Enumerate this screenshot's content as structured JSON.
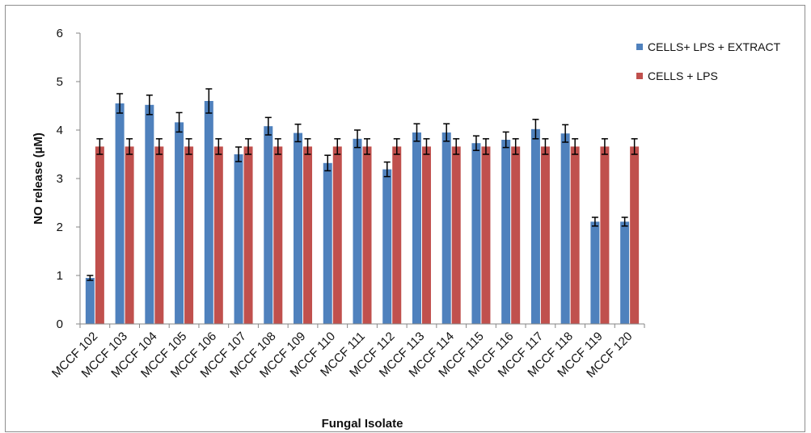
{
  "chart_data": {
    "type": "bar",
    "title": "",
    "xlabel": "Fungal Isolate",
    "ylabel": "NO release (µM)",
    "ylim": [
      0,
      6
    ],
    "yticks": [
      0,
      1,
      2,
      3,
      4,
      5,
      6
    ],
    "grid": false,
    "legend_position": "top-right",
    "categories": [
      "MCCF 102",
      "MCCF 103",
      "MCCF 104",
      "MCCF 105",
      "MCCF 106",
      "MCCF 107",
      "MCCF 108",
      "MCCF 109",
      "MCCF 110",
      "MCCF 111",
      "MCCF 112",
      "MCCF 113",
      "MCCF 114",
      "MCCF 115",
      "MCCF 116",
      "MCCF 117",
      "MCCF 118",
      "MCCF 119",
      "MCCF 120"
    ],
    "series": [
      {
        "name": "CELLS+ LPS + EXTRACT",
        "color": "#4f81bd",
        "values": [
          0.95,
          4.55,
          4.52,
          4.16,
          4.6,
          3.5,
          4.08,
          3.94,
          3.32,
          3.82,
          3.19,
          3.95,
          3.95,
          3.73,
          3.8,
          4.02,
          3.93,
          2.11,
          2.11
        ],
        "errors": [
          0.05,
          0.2,
          0.2,
          0.2,
          0.25,
          0.15,
          0.18,
          0.18,
          0.16,
          0.18,
          0.15,
          0.18,
          0.18,
          0.15,
          0.16,
          0.2,
          0.18,
          0.09,
          0.09
        ]
      },
      {
        "name": "CELLS + LPS",
        "color": "#c0504d",
        "values": [
          3.66,
          3.66,
          3.66,
          3.66,
          3.66,
          3.66,
          3.66,
          3.66,
          3.66,
          3.66,
          3.66,
          3.66,
          3.66,
          3.66,
          3.66,
          3.66,
          3.66,
          3.66,
          3.66
        ],
        "errors": [
          0.16,
          0.16,
          0.16,
          0.16,
          0.16,
          0.16,
          0.16,
          0.16,
          0.16,
          0.16,
          0.16,
          0.16,
          0.16,
          0.16,
          0.16,
          0.16,
          0.16,
          0.16,
          0.16
        ]
      }
    ]
  }
}
